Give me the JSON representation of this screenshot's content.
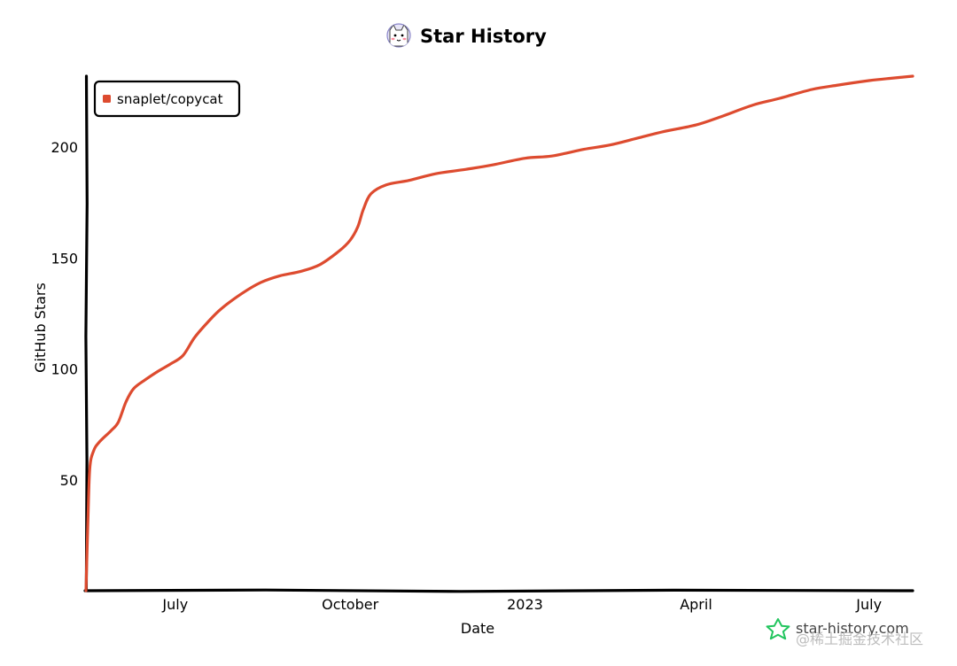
{
  "header": {
    "title": "Star History",
    "logo_icon": "star-history-cat-icon"
  },
  "branding": {
    "text": "star-history.com",
    "icon": "star-outline-icon",
    "color": "#22c55e"
  },
  "watermark": {
    "text": "@稀土掘金技术社区"
  },
  "colors": {
    "series": "#dd4b2f",
    "axis": "#000000"
  },
  "chart_data": {
    "type": "line",
    "title": "Star History",
    "xlabel": "Date",
    "ylabel": "GitHub Stars",
    "xlim": [
      "2022-05-15",
      "2023-07-24"
    ],
    "ylim": [
      0,
      232
    ],
    "x_ticks": [
      {
        "label": "July",
        "date": "2022-07-01"
      },
      {
        "label": "October",
        "date": "2022-10-01"
      },
      {
        "label": "2023",
        "date": "2023-01-01"
      },
      {
        "label": "April",
        "date": "2023-04-01"
      },
      {
        "label": "July",
        "date": "2023-07-01"
      }
    ],
    "y_ticks": [
      50,
      100,
      150,
      200
    ],
    "grid": false,
    "legend_position": "top-left",
    "series": [
      {
        "name": "snaplet/copycat",
        "x": [
          "2022-05-15",
          "2022-05-16",
          "2022-05-17",
          "2022-05-19",
          "2022-05-22",
          "2022-05-28",
          "2022-06-01",
          "2022-06-05",
          "2022-06-09",
          "2022-06-15",
          "2022-06-22",
          "2022-06-28",
          "2022-07-05",
          "2022-07-11",
          "2022-07-18",
          "2022-07-25",
          "2022-08-05",
          "2022-08-15",
          "2022-08-25",
          "2022-09-05",
          "2022-09-15",
          "2022-09-25",
          "2022-10-01",
          "2022-10-05",
          "2022-10-08",
          "2022-10-12",
          "2022-10-20",
          "2022-11-01",
          "2022-11-15",
          "2022-12-01",
          "2022-12-15",
          "2023-01-01",
          "2023-01-15",
          "2023-02-01",
          "2023-02-15",
          "2023-03-01",
          "2023-03-15",
          "2023-04-01",
          "2023-04-15",
          "2023-05-01",
          "2023-05-15",
          "2023-06-01",
          "2023-06-15",
          "2023-07-01",
          "2023-07-12",
          "2023-07-24"
        ],
        "y": [
          0,
          30,
          55,
          63,
          67,
          72,
          76,
          85,
          91,
          95,
          99,
          102,
          106,
          114,
          121,
          127,
          134,
          139,
          142,
          144,
          147,
          153,
          158,
          164,
          172,
          179,
          183,
          185,
          188,
          190,
          192,
          195,
          196,
          199,
          201,
          204,
          207,
          210,
          214,
          219,
          222,
          226,
          228,
          230,
          231,
          232
        ]
      }
    ]
  }
}
